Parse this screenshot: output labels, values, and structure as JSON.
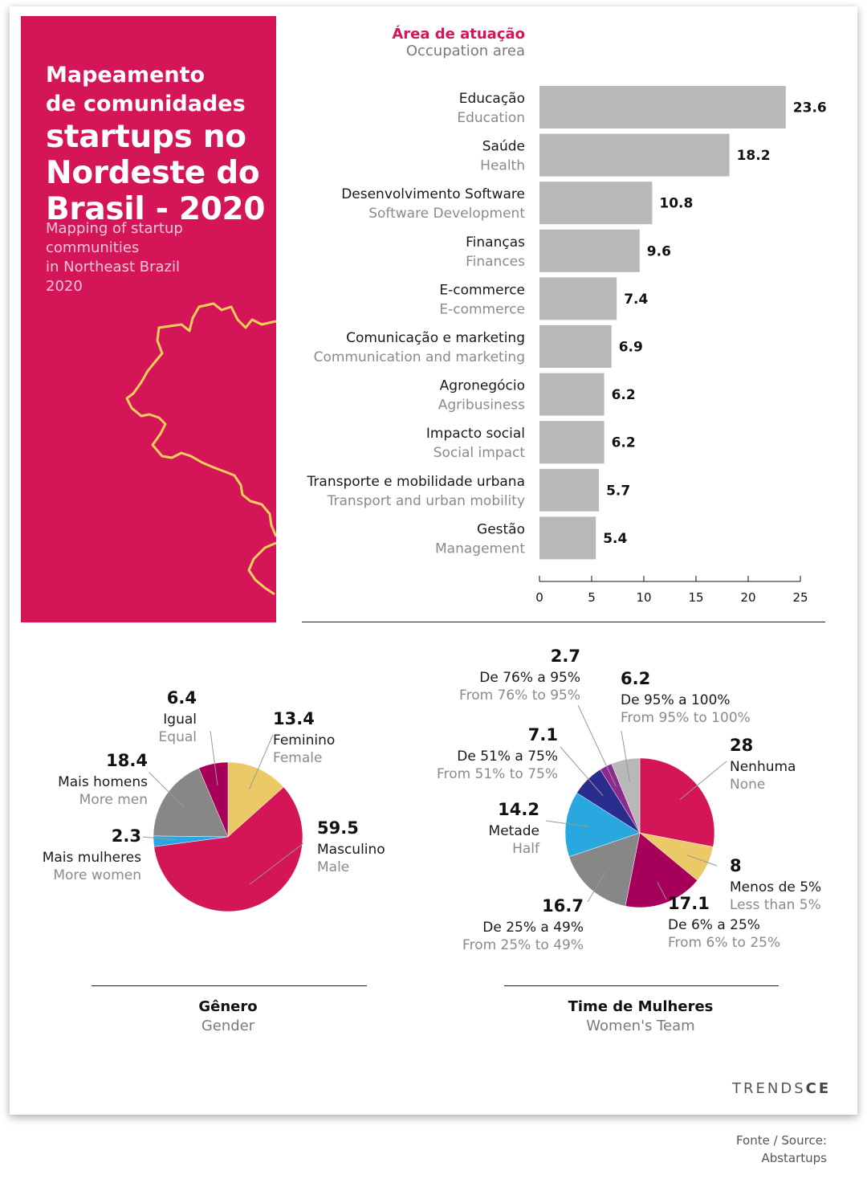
{
  "hero": {
    "line1": "Mapeamento",
    "line2": "de comunidades",
    "line3": "startups no",
    "line4": "Nordeste do",
    "line5": "Brasil - 2020",
    "sub1": "Mapping of startup",
    "sub2": "communities",
    "sub3": "in Northeast Brazil",
    "sub4": "2020"
  },
  "colors": {
    "brand": "#d41658",
    "map_line": "#f2cf5b",
    "bar": "#b8b8b8"
  },
  "chart_data": [
    {
      "type": "bar",
      "orientation": "horizontal",
      "title": "Área de atuação",
      "subtitle": "Occupation area",
      "categories": [
        {
          "pt": "Educação",
          "en": "Education"
        },
        {
          "pt": "Saúde",
          "en": "Health"
        },
        {
          "pt": "Desenvolvimento Software",
          "en": "Software Development"
        },
        {
          "pt": "Finanças",
          "en": "Finances"
        },
        {
          "pt": "E-commerce",
          "en": "E-commerce"
        },
        {
          "pt": "Comunicação e marketing",
          "en": "Communication and marketing"
        },
        {
          "pt": "Agronegócio",
          "en": "Agribusiness"
        },
        {
          "pt": "Impacto social",
          "en": "Social impact"
        },
        {
          "pt": "Transporte e mobilidade urbana",
          "en": "Transport and urban mobility"
        },
        {
          "pt": "Gestão",
          "en": "Management"
        }
      ],
      "values": [
        23.6,
        18.2,
        10.8,
        9.6,
        7.4,
        6.9,
        6.2,
        6.2,
        5.7,
        5.4
      ],
      "xlim": [
        0,
        25
      ],
      "xticks": [
        0,
        5,
        10,
        15,
        20,
        25
      ],
      "color": "#b8b8b8"
    },
    {
      "type": "pie",
      "title": "Gênero",
      "subtitle": "Gender",
      "slices": [
        {
          "pt": "Feminino",
          "en": "Female",
          "value": 13.4,
          "color": "#ebc966"
        },
        {
          "pt": "Masculino",
          "en": "Male",
          "value": 59.5,
          "color": "#d41658"
        },
        {
          "pt": "Mais mulheres",
          "en": "More women",
          "value": 2.3,
          "color": "#29a8e0"
        },
        {
          "pt": "Mais homens",
          "en": "More men",
          "value": 18.4,
          "color": "#878787"
        },
        {
          "pt": "Igual",
          "en": "Equal",
          "value": 6.4,
          "color": "#a6005a"
        }
      ]
    },
    {
      "type": "pie",
      "title": "Time de Mulheres",
      "subtitle": "Women's Team",
      "slices": [
        {
          "pt": "Nenhuma",
          "en": "None",
          "value": 28,
          "color": "#d41658"
        },
        {
          "pt": "Menos de 5%",
          "en": "Less than 5%",
          "value": 8,
          "color": "#ebc966"
        },
        {
          "pt": "De 6% a 25%",
          "en": "From 6% to 25%",
          "value": 17.1,
          "color": "#a6005a"
        },
        {
          "pt": "De 25% a 49%",
          "en": "From 25% to 49%",
          "value": 16.7,
          "color": "#878787"
        },
        {
          "pt": "Metade",
          "en": "Half",
          "value": 14.2,
          "color": "#29a8e0"
        },
        {
          "pt": "De 51% a 75%",
          "en": "From 51% to 75%",
          "value": 7.1,
          "color": "#2b2d8e"
        },
        {
          "pt": "De 76% a 95%",
          "en": "From 76% to 95%",
          "value": 2.7,
          "color": "#8e2a8e"
        },
        {
          "pt": "De 95% a 100%",
          "en": "From 95% to 100%",
          "value": 6.2,
          "color": "#b8b8b8"
        }
      ]
    }
  ],
  "branding": {
    "prefix": "TRENDS",
    "suffix": "CE"
  },
  "source": {
    "line1": "Fonte / Source:",
    "line2": "Abstartups"
  }
}
